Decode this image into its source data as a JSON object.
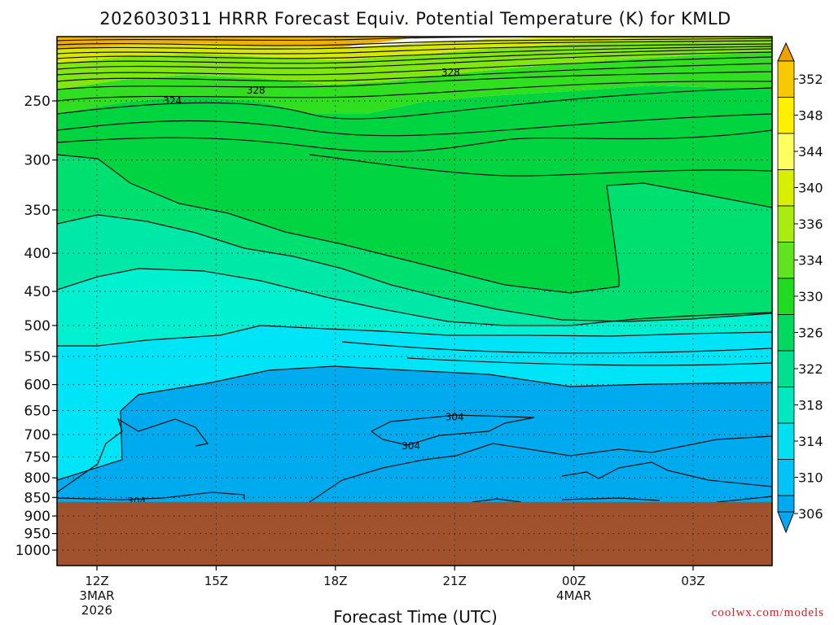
{
  "chart_data": {
    "type": "contour",
    "title": "2026030311 HRRR Forecast Equiv. Potential Temperature (K) for KMLD",
    "xlabel": "Forecast Time (UTC)",
    "ylabel": "",
    "x_ticks": [
      {
        "hour": 0,
        "label": "12Z",
        "sub1": "3MAR",
        "sub2": "2026"
      },
      {
        "hour": 3,
        "label": "15Z",
        "sub1": "",
        "sub2": ""
      },
      {
        "hour": 6,
        "label": "18Z",
        "sub1": "",
        "sub2": ""
      },
      {
        "hour": 9,
        "label": "21Z",
        "sub1": "",
        "sub2": ""
      },
      {
        "hour": 12,
        "label": "00Z",
        "sub1": "4MAR",
        "sub2": ""
      },
      {
        "hour": 15,
        "label": "03Z",
        "sub1": "",
        "sub2": ""
      }
    ],
    "x_range_hours": [
      -1,
      17
    ],
    "y_ticks": [
      250,
      300,
      350,
      400,
      450,
      500,
      550,
      600,
      650,
      700,
      750,
      800,
      850,
      900,
      950,
      1000
    ],
    "y_range_hpa": [
      200,
      1050
    ],
    "y_scale": "log-pressure",
    "surface_pressure_hpa": 862,
    "colorbar_ticks": [
      352,
      348,
      344,
      340,
      336,
      334,
      330,
      326,
      322,
      318,
      314,
      310,
      306
    ],
    "contour_interval": 2,
    "contour_labels": [
      {
        "value": "328",
        "hour": 8.9,
        "hpa": 229
      },
      {
        "value": "328",
        "hour": 4.0,
        "hpa": 242
      },
      {
        "value": "324",
        "hour": 1.9,
        "hpa": 250
      },
      {
        "value": "304",
        "hour": 9.0,
        "hpa": 663
      },
      {
        "value": "304",
        "hour": 7.9,
        "hpa": 725
      },
      {
        "value": "304",
        "hour": 1.0,
        "hpa": 860
      }
    ],
    "series": [
      {
        "hpa": 250,
        "theta_e": [
          323,
          325,
          327,
          328,
          328,
          328,
          329
        ]
      },
      {
        "hpa": 300,
        "theta_e": [
          316,
          319,
          321,
          322,
          322,
          323,
          323
        ]
      },
      {
        "hpa": 400,
        "theta_e": [
          311,
          312,
          314,
          316,
          318,
          319,
          320
        ]
      },
      {
        "hpa": 500,
        "theta_e": [
          309,
          309,
          310,
          311,
          313,
          315,
          316
        ]
      },
      {
        "hpa": 600,
        "theta_e": [
          306,
          306,
          305,
          305,
          306,
          306,
          306
        ]
      },
      {
        "hpa": 700,
        "theta_e": [
          305,
          304,
          303,
          304,
          304,
          304,
          305
        ]
      },
      {
        "hpa": 850,
        "theta_e": [
          303,
          303,
          303,
          303,
          303,
          303,
          303
        ]
      }
    ],
    "series_hours": [
      -1,
      2,
      5,
      8,
      11,
      14,
      17
    ]
  },
  "credit": "coolwx.com/models"
}
